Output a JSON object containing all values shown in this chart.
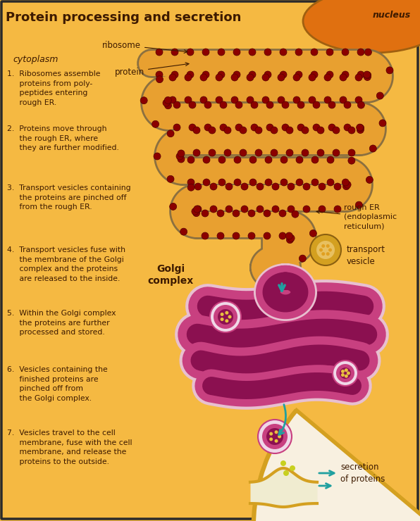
{
  "title": "Protein processing and secretion",
  "background_color": "#F5B942",
  "border_color": "#2A2A2A",
  "dark_text": "#3D1A00",
  "nucleus_label": "nucleus",
  "cytoplasm_label": "cytoplasm",
  "ribosome_label": "ribosome",
  "protein_label": "protein",
  "rough_er_label": "rough ER\n(endoplasmic\nreticulum)",
  "transport_vesicle_label": "transport\nvesicle",
  "golgi_label": "Golgi\ncomplex",
  "secretion_label": "secretion\nof proteins",
  "steps": [
    "1.  Ribosomes assemble\n     proteins from poly-\n     peptides entering\n     rough ER.",
    "2.  Proteins move through\n     the rough ER, where\n     they are further modified.",
    "3.  Transport vesicles containing\n     the proteins are pinched off\n     from the rough ER.",
    "4.  Transport vesicles fuse with\n     the membrane of the Golgi\n     complex and the proteins\n     are released to the inside.",
    "5.  Within the Golgi complex\n     the proteins are further\n     processed and stored.",
    "6.  Vesicles containing the\n     finished proteins are\n     pinched off from\n     the Golgi complex.",
    "7.  Vesicles travel to the cell\n     membrane, fuse with the cell\n     membrane, and release the\n     proteins to the outside."
  ],
  "er_outer_color": "#8B7040",
  "er_fill_color": "#E8A030",
  "ribosome_color": "#8B0000",
  "golgi_outline_color": "#E8C0D0",
  "golgi_outer_color": "#C84080",
  "golgi_inner_color": "#8B1050",
  "golgi_lumen_color": "#C0406A",
  "vesicle_ring_color": "#E8C8D8",
  "vesicle_outer_color": "#C84080",
  "vesicle_inner_color": "#8B1050",
  "arrow_color": "#20A0A0",
  "cell_wall_color": "#D4A020",
  "cell_wall_fill": "#F8F0E0",
  "nucleus_bg": "#E07010"
}
